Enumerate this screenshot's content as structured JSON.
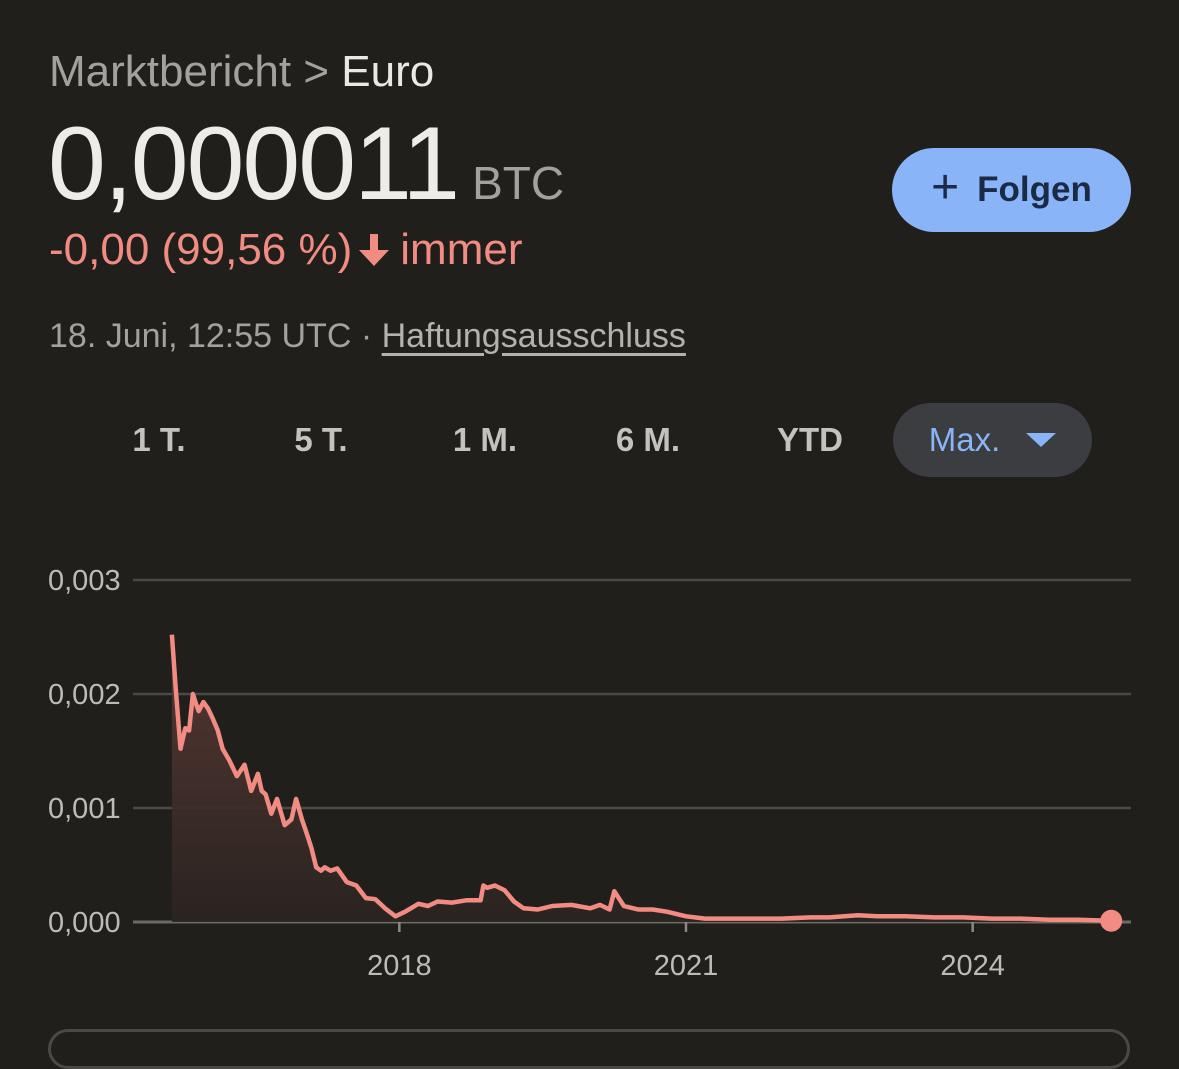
{
  "breadcrumb": {
    "parent": "Marktbericht",
    "separator": ">",
    "current": "Euro"
  },
  "price": {
    "value": "0,000011",
    "currency": "BTC"
  },
  "change": {
    "text": "-0,00 (99,56 %)",
    "period": "immer",
    "color": "#f28b82",
    "direction": "down",
    "icon": "arrow-down-icon"
  },
  "meta": {
    "timestamp": "18. Juni, 12:55 UTC",
    "separator": "·",
    "disclaimer": "Haftungsausschluss"
  },
  "follow_button": {
    "label": "Folgen",
    "icon": "plus-icon",
    "color": "#8ab4f8"
  },
  "ranges": {
    "items": [
      {
        "label": "1 T."
      },
      {
        "label": "5 T."
      },
      {
        "label": "1 M."
      },
      {
        "label": "6 M."
      },
      {
        "label": "YTD"
      },
      {
        "label": "Max.",
        "selected": true,
        "icon": "caret-down-icon"
      }
    ]
  },
  "chart_data": {
    "type": "area",
    "line_color": "#f28b82",
    "grid": true,
    "ylim": [
      0,
      0.003
    ],
    "yticks": [
      {
        "value": 0.003,
        "label": "0,003"
      },
      {
        "value": 0.002,
        "label": "0,002"
      },
      {
        "value": 0.001,
        "label": "0,001"
      },
      {
        "value": 0,
        "label": "0,000"
      }
    ],
    "xlim": [
      2015.6,
      2025.5
    ],
    "xticks": [
      {
        "value": 2018,
        "label": "2018"
      },
      {
        "value": 2021,
        "label": "2021"
      },
      {
        "value": 2024,
        "label": "2024"
      }
    ],
    "x": [
      2015.62,
      2015.66,
      2015.71,
      2015.76,
      2015.8,
      2015.84,
      2015.87,
      2015.9,
      2015.95,
      2016.0,
      2016.05,
      2016.1,
      2016.15,
      2016.22,
      2016.3,
      2016.38,
      2016.45,
      2016.52,
      2016.56,
      2016.6,
      2016.66,
      2016.72,
      2016.8,
      2016.87,
      2016.92,
      2016.98,
      2017.03,
      2017.08,
      2017.13,
      2017.18,
      2017.22,
      2017.28,
      2017.35,
      2017.45,
      2017.55,
      2017.65,
      2017.75,
      2017.85,
      2017.96,
      2018.06,
      2018.2,
      2018.3,
      2018.4,
      2018.55,
      2018.7,
      2018.85,
      2018.88,
      2018.92,
      2019.0,
      2019.1,
      2019.2,
      2019.3,
      2019.45,
      2019.6,
      2019.8,
      2020.0,
      2020.1,
      2020.2,
      2020.25,
      2020.35,
      2020.5,
      2020.65,
      2020.8,
      2021.0,
      2021.2,
      2021.5,
      2021.8,
      2022.0,
      2022.3,
      2022.5,
      2022.8,
      2023.0,
      2023.3,
      2023.6,
      2023.9,
      2024.2,
      2024.5,
      2024.8,
      2025.1,
      2025.45
    ],
    "values": [
      0.00252,
      0.00205,
      0.00152,
      0.0017,
      0.00168,
      0.002,
      0.00192,
      0.00185,
      0.00193,
      0.00187,
      0.00178,
      0.00168,
      0.00152,
      0.00142,
      0.00128,
      0.00138,
      0.00115,
      0.0013,
      0.00115,
      0.00112,
      0.00095,
      0.00108,
      0.00085,
      0.0009,
      0.00108,
      0.0009,
      0.00078,
      0.00065,
      0.00048,
      0.00045,
      0.00048,
      0.00045,
      0.00047,
      0.00035,
      0.00032,
      0.00021,
      0.0002,
      0.00012,
      5e-05,
      9e-05,
      0.00016,
      0.00014,
      0.00018,
      0.00017,
      0.00019,
      0.00019,
      0.00032,
      0.0003,
      0.00032,
      0.00028,
      0.00018,
      0.00012,
      0.00011,
      0.00014,
      0.00015,
      0.00012,
      0.00015,
      0.00011,
      0.00027,
      0.00014,
      0.00011,
      0.00011,
      9e-05,
      5e-05,
      3e-05,
      3e-05,
      3e-05,
      3e-05,
      4e-05,
      4e-05,
      6e-05,
      5e-05,
      5e-05,
      4e-05,
      4e-05,
      3e-05,
      3e-05,
      2e-05,
      2e-05,
      1.1e-05
    ]
  }
}
